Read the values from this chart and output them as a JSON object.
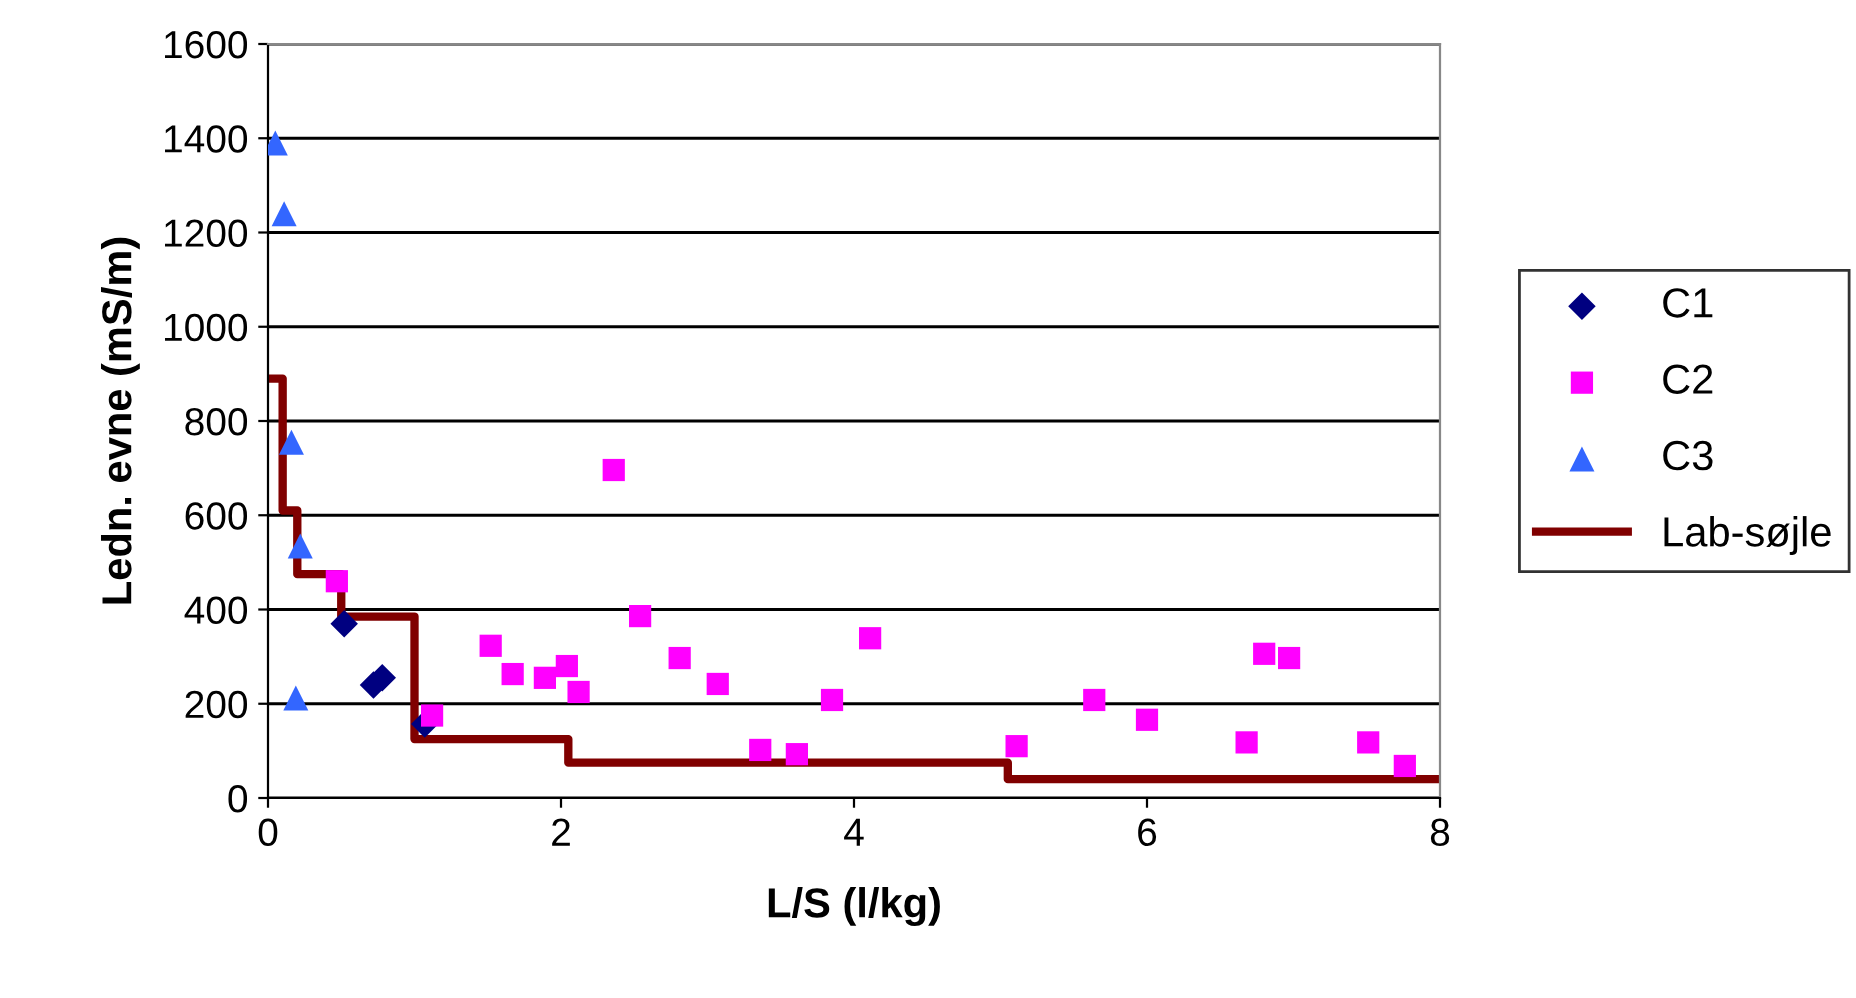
{
  "chart_data": {
    "type": "scatter",
    "xlabel": "L/S (l/kg)",
    "ylabel": "Ledn. evne (mS/m)",
    "xlim": [
      0,
      8
    ],
    "xticks": [
      0,
      2,
      4,
      6,
      8
    ],
    "ylim": [
      0,
      1600
    ],
    "yticks": [
      0,
      200,
      400,
      600,
      800,
      1000,
      1200,
      1400,
      1600
    ],
    "grid": "y",
    "legend": "right",
    "series": [
      {
        "name": "C1",
        "color": "#000080",
        "marker": "diamond",
        "x": [
          0.52,
          0.72,
          0.78,
          1.07
        ],
        "values": [
          370,
          240,
          255,
          157
        ]
      },
      {
        "name": "C2",
        "color": "#ff00ff",
        "marker": "square",
        "x": [
          0.47,
          1.12,
          1.52,
          1.67,
          1.89,
          2.04,
          2.12,
          2.36,
          2.54,
          2.81,
          3.07,
          3.36,
          3.61,
          3.85,
          4.11,
          5.11,
          5.64,
          6.0,
          6.68,
          6.8,
          6.97,
          7.51,
          7.76
        ],
        "values": [
          460,
          175,
          323,
          263,
          255,
          280,
          225,
          696,
          386,
          297,
          242,
          102,
          93,
          208,
          339,
          110,
          208,
          166,
          118,
          306,
          297,
          118,
          68
        ]
      },
      {
        "name": "C3",
        "color": "#3366ff",
        "marker": "triangle",
        "x": [
          0.05,
          0.11,
          0.16,
          0.22,
          0.19
        ],
        "values": [
          1390,
          1240,
          755,
          535,
          212
        ]
      },
      {
        "name": "Lab-søjle",
        "type": "step",
        "color": "#800000",
        "marker": "none",
        "line_style": "solid",
        "x": [
          0,
          0.1,
          0.2,
          0.5,
          1.0,
          2.05,
          5.05,
          8
        ],
        "values": [
          890,
          610,
          475,
          385,
          125,
          75,
          40,
          40
        ]
      }
    ]
  }
}
